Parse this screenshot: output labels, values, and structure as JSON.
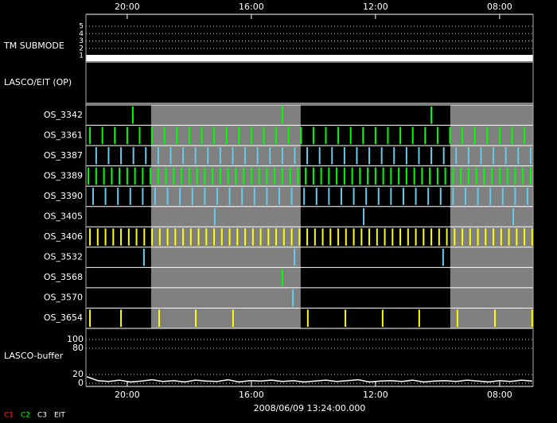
{
  "chart_data": {
    "type": "timeline",
    "date": "2008/06/09 13:24:00.000",
    "xlim": [
      21.33,
      6.92
    ],
    "xticks": [
      {
        "value": 20,
        "label": "20:00"
      },
      {
        "value": 16,
        "label": "16:00"
      },
      {
        "value": 12,
        "label": "12:00"
      },
      {
        "value": 8,
        "label": "08:00"
      }
    ],
    "shaded": [
      [
        19.23,
        14.41
      ],
      [
        9.59,
        6.92
      ]
    ],
    "submode": {
      "label": "TM SUBMODE",
      "ylim": [
        1,
        5
      ],
      "yticks": [
        1,
        2,
        3,
        4,
        5
      ],
      "level": 1
    },
    "lasco_eit": {
      "label": "LASCO/EIT (OP)"
    },
    "rows": [
      {
        "name": "OS_3342",
        "color": "#00ff00",
        "events": [
          19.82,
          15.0,
          10.2
        ]
      },
      {
        "name": "OS_3361",
        "color": "#00ff00",
        "events": [
          21.2,
          20.8,
          20.4,
          20.0,
          19.6,
          19.2,
          18.8,
          18.4,
          18.0,
          17.6,
          17.2,
          16.8,
          16.4,
          16.0,
          15.6,
          15.2,
          14.8,
          14.4,
          14.0,
          13.6,
          13.2,
          12.8,
          12.4,
          12.0,
          11.6,
          11.2,
          10.8,
          10.4,
          10.0,
          9.6,
          9.2,
          8.8,
          8.4,
          8.0,
          7.6,
          7.2
        ]
      },
      {
        "name": "OS_3387",
        "color": "#66ccee",
        "events": [
          21.0,
          20.6,
          20.2,
          19.8,
          19.4,
          19.0,
          18.6,
          18.2,
          17.8,
          17.4,
          17.0,
          16.6,
          16.2,
          15.8,
          15.4,
          15.0,
          14.6,
          14.2,
          13.8,
          13.4,
          13.0,
          12.6,
          12.2,
          11.8,
          11.4,
          11.0,
          10.6,
          10.2,
          9.8,
          9.4,
          9.0,
          8.6,
          8.2,
          7.8,
          7.4,
          7.0
        ]
      },
      {
        "name": "OS_3389",
        "color": "#00ff00",
        "events": [
          21.25,
          21.0,
          20.75,
          20.5,
          20.25,
          20.0,
          19.75,
          19.5,
          19.25,
          19.0,
          18.75,
          18.5,
          18.25,
          18.0,
          17.75,
          17.5,
          17.25,
          17.0,
          16.75,
          16.5,
          16.25,
          16.0,
          15.75,
          15.5,
          15.25,
          15.0,
          14.75,
          14.5,
          14.25,
          14.0,
          13.75,
          13.5,
          13.25,
          13.0,
          12.75,
          12.5,
          12.25,
          12.0,
          11.75,
          11.5,
          11.25,
          11.0,
          10.75,
          10.5,
          10.25,
          10.0,
          9.75,
          9.5,
          9.25,
          9.0,
          8.75,
          8.5,
          8.25,
          8.0,
          7.75,
          7.5,
          7.25,
          7.0
        ]
      },
      {
        "name": "OS_3390",
        "color": "#66ccee",
        "events": [
          21.1,
          20.7,
          20.3,
          19.9,
          19.5,
          19.1,
          18.7,
          18.3,
          17.9,
          17.5,
          17.1,
          16.7,
          16.3,
          15.9,
          15.5,
          15.1,
          14.7,
          14.3,
          13.9,
          13.5,
          13.1,
          12.7,
          12.3,
          11.9,
          11.5,
          11.1,
          10.7,
          10.3,
          9.9,
          9.5,
          9.1,
          8.7,
          8.3,
          7.9,
          7.5,
          7.1
        ]
      },
      {
        "name": "OS_3405",
        "color": "#66ccee",
        "events": [
          17.18,
          12.38,
          7.56
        ]
      },
      {
        "name": "OS_3406",
        "color": "#ffff00",
        "events": [
          21.2,
          20.95,
          20.7,
          20.45,
          20.2,
          19.95,
          19.7,
          19.45,
          19.2,
          18.95,
          18.7,
          18.45,
          18.2,
          17.95,
          17.7,
          17.45,
          17.2,
          16.95,
          16.7,
          16.45,
          16.2,
          15.95,
          15.7,
          15.45,
          15.2,
          14.95,
          14.7,
          14.45,
          14.2,
          13.95,
          13.7,
          13.45,
          13.2,
          12.95,
          12.7,
          12.45,
          12.2,
          11.95,
          11.7,
          11.45,
          11.2,
          10.95,
          10.7,
          10.45,
          10.2,
          9.95,
          9.7,
          9.45,
          9.2,
          8.95,
          8.7,
          8.45,
          8.2,
          7.95,
          7.7,
          7.45,
          7.2,
          6.95
        ]
      },
      {
        "name": "OS_3532",
        "color": "#66ccee",
        "events": [
          19.46,
          14.61,
          9.82
        ]
      },
      {
        "name": "OS_3568",
        "color": "#00ff00",
        "events": [
          15.0
        ]
      },
      {
        "name": "OS_3570",
        "color": "#66ccee",
        "events": [
          14.66
        ]
      },
      {
        "name": "OS_3654",
        "color": "#ffff00",
        "events": [
          21.2,
          20.2,
          18.97,
          17.79,
          16.59,
          14.18,
          12.97,
          11.77,
          10.59,
          9.36,
          8.15,
          6.95
        ]
      }
    ],
    "buffer": {
      "label": "LASCO-buffer",
      "ylim": [
        0,
        100
      ],
      "yticks": [
        0,
        20,
        80,
        100
      ],
      "x": [
        21.3,
        20.95,
        20.6,
        20.25,
        19.9,
        19.55,
        19.2,
        18.85,
        18.5,
        18.15,
        17.8,
        17.45,
        17.1,
        16.75,
        16.4,
        16.05,
        15.7,
        15.35,
        15.0,
        14.65,
        14.3,
        13.95,
        13.6,
        13.25,
        12.9,
        12.55,
        12.2,
        11.85,
        11.5,
        11.15,
        10.8,
        10.45,
        10.1,
        9.75,
        9.4,
        9.05,
        8.7,
        8.35,
        8.0,
        7.65,
        7.3,
        6.95
      ],
      "values": [
        15,
        6,
        4,
        7,
        3,
        5,
        8,
        4,
        6,
        3,
        7,
        5,
        4,
        8,
        3,
        6,
        5,
        7,
        4,
        6,
        3,
        5,
        7,
        4,
        6,
        8,
        3,
        5,
        6,
        4,
        7,
        3,
        5,
        6,
        4,
        7,
        5,
        3,
        6,
        4,
        7,
        5
      ]
    },
    "legend": [
      {
        "name": "C1",
        "color": "#ff2020"
      },
      {
        "name": "C2",
        "color": "#00ff00"
      },
      {
        "name": "C3",
        "color": "#ffffff"
      },
      {
        "name": "EIT",
        "color": "#ffffff"
      }
    ]
  }
}
